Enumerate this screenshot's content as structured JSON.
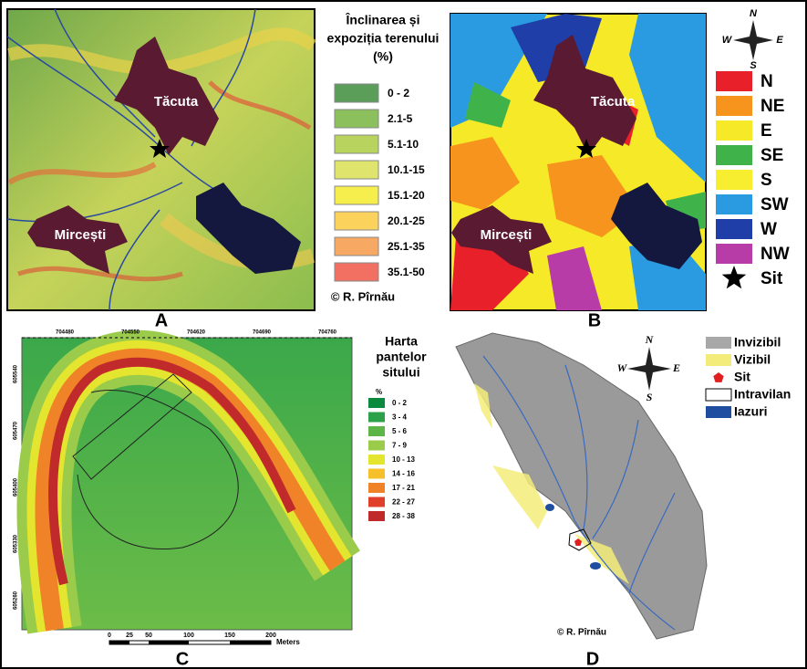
{
  "panel_a": {
    "letter": "A",
    "legend_title": [
      "Înclinarea și",
      "expoziția terenului",
      "(%)"
    ],
    "legend": [
      {
        "label": "0 - 2",
        "color": "#5a9e5a"
      },
      {
        "label": "2.1-5",
        "color": "#8cc05c"
      },
      {
        "label": "5.1-10",
        "color": "#b8d45e"
      },
      {
        "label": "10.1-15",
        "color": "#dee46c"
      },
      {
        "label": "15.1-20",
        "color": "#f6ee4c"
      },
      {
        "label": "20.1-25",
        "color": "#fbd35c"
      },
      {
        "label": "25.1-35",
        "color": "#f7a862"
      },
      {
        "label": "35.1-50",
        "color": "#f27062"
      }
    ],
    "places": [
      "Tăcuta",
      "Mircești"
    ],
    "credit": "© R. Pîrnău"
  },
  "panel_b": {
    "letter": "B",
    "compass": [
      "N",
      "W",
      "E",
      "S"
    ],
    "legend": [
      {
        "label": "N",
        "color": "#e8202a"
      },
      {
        "label": "NE",
        "color": "#f7941d"
      },
      {
        "label": "E",
        "color": "#f5e928"
      },
      {
        "label": "SE",
        "color": "#3fb34a"
      },
      {
        "label": "S",
        "color": "#f7ee30"
      },
      {
        "label": "SW",
        "color": "#2a9be0"
      },
      {
        "label": "W",
        "color": "#1f3ea8"
      },
      {
        "label": "NW",
        "color": "#b83ca8"
      },
      {
        "label": "Sit",
        "color": "#000000",
        "shape": "star"
      }
    ],
    "places": [
      "Tăcuta",
      "Mircești"
    ]
  },
  "panel_c": {
    "letter": "C",
    "x_ticks": [
      "704480",
      "704550",
      "704620",
      "704690",
      "704760"
    ],
    "y_ticks": [
      "605540",
      "605470",
      "605400",
      "605330",
      "605260"
    ],
    "legend_title": [
      "Harta",
      "pantelor",
      "sitului"
    ],
    "legend_unit": "%",
    "legend": [
      {
        "label": "0 - 2",
        "color": "#0a8a3c"
      },
      {
        "label": "3 - 4",
        "color": "#2da04a"
      },
      {
        "label": "5 - 6",
        "color": "#5cb546"
      },
      {
        "label": "7 - 9",
        "color": "#9acb4a"
      },
      {
        "label": "10 - 13",
        "color": "#e3e52e"
      },
      {
        "label": "14 - 16",
        "color": "#f5c02a"
      },
      {
        "label": "17 - 21",
        "color": "#f08228"
      },
      {
        "label": "22 - 27",
        "color": "#e0402a"
      },
      {
        "label": "28 - 38",
        "color": "#c02a2a"
      }
    ],
    "scale_ticks": [
      "0",
      "25",
      "50",
      "100",
      "150",
      "200"
    ],
    "scale_unit": "Meters"
  },
  "panel_d": {
    "letter": "D",
    "compass": [
      "N",
      "W",
      "E",
      "S"
    ],
    "legend": [
      {
        "label": "Invizibil",
        "color": "#a8a8a8"
      },
      {
        "label": "Vizibil",
        "color": "#f3ec7a"
      },
      {
        "label": "Sit",
        "color": "#e02020",
        "shape": "pentagon"
      },
      {
        "label": "Intravilan",
        "color": "#ffffff"
      },
      {
        "label": "Iazuri",
        "color": "#1f4ea0"
      }
    ],
    "credit": "© R. Pîrnău"
  }
}
